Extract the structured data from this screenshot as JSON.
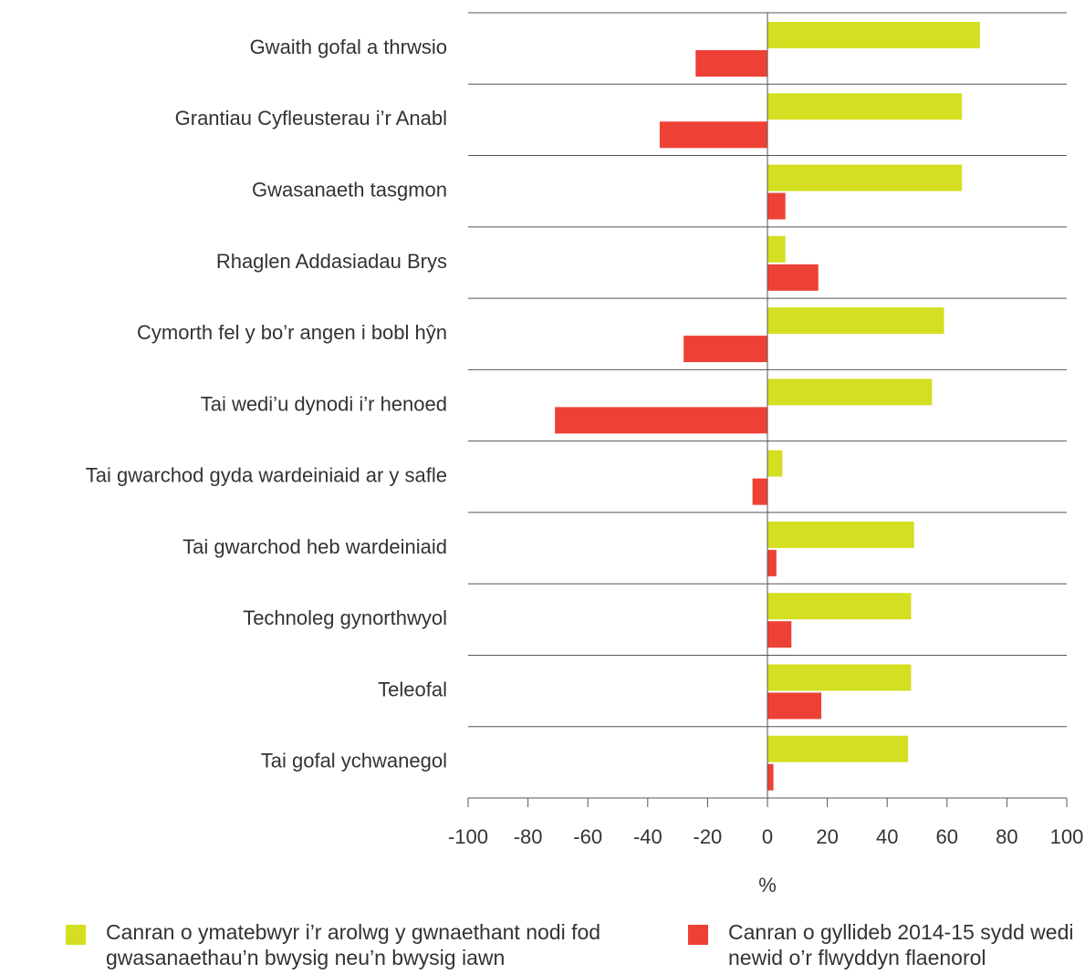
{
  "chart_data": {
    "type": "bar",
    "orientation": "horizontal",
    "categories": [
      "Gwaith gofal a thrwsio",
      "Grantiau Cyfleusterau i’r Anabl",
      "Gwasanaeth tasgmon",
      "Rhaglen Addasiadau Brys",
      "Cymorth fel y bo’r angen i bobl hŷn",
      "Tai wedi’u dynodi i’r henoed",
      "Tai gwarchod gyda wardeiniaid ar y safle",
      "Tai gwarchod heb wardeiniaid",
      "Technoleg gynorthwyol",
      "Teleofal",
      "Tai gofal ychwanegol"
    ],
    "series": [
      {
        "name": "Canran o ymatebwyr i’r arolwg y gwnaethant nodi fod gwasanaethau’n bwysig neu’n bwysig iawn",
        "color": "#d4df22",
        "values": [
          71,
          65,
          65,
          6,
          59,
          55,
          5,
          49,
          48,
          48,
          47
        ]
      },
      {
        "name": "Canran o gyllideb 2014-15 sydd wedi newid o’r flwyddyn flaenorol",
        "color": "#ee4136",
        "values": [
          -24,
          -36,
          6,
          17,
          -28,
          -71,
          -5,
          3,
          8,
          18,
          2
        ]
      }
    ],
    "xlabel": "%",
    "xlim": [
      -100,
      100
    ],
    "xticks": [
      -100,
      -80,
      -60,
      -40,
      -20,
      0,
      20,
      40,
      60,
      80,
      100
    ]
  }
}
